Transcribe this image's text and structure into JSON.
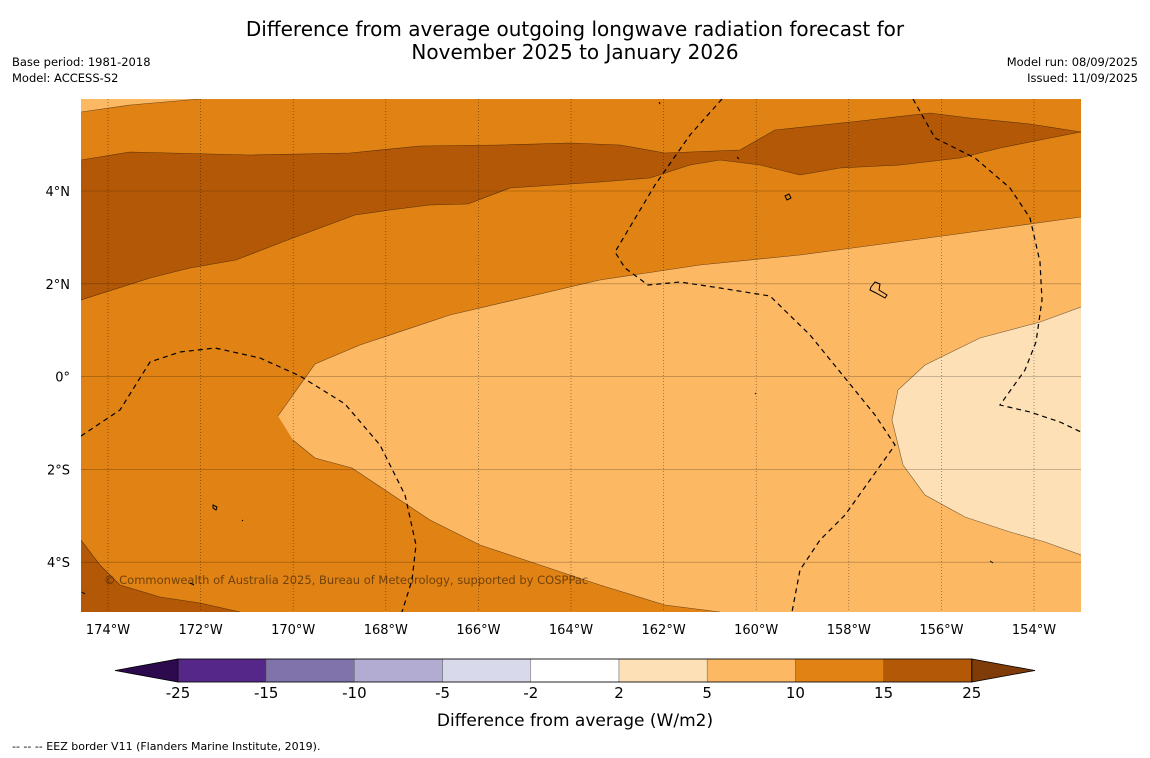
{
  "title_line1": "Difference from average outgoing longwave radiation forecast for",
  "title_line2": "November 2025 to January 2026",
  "base_period": "Base period: 1981-2018",
  "model": "Model: ACCESS-S2",
  "model_run": "Model run: 08/09/2025",
  "issued": "Issued: 11/09/2025",
  "copyright": "© Commonwealth of Australia 2025, Bureau of Meteorology, supported by COSPPac",
  "longitude_labels": [
    "174°W",
    "172°W",
    "170°W",
    "168°W",
    "166°W",
    "164°W",
    "162°W",
    "160°W",
    "158°W",
    "156°W",
    "154°W"
  ],
  "latitude_labels": [
    "4°N",
    "2°N",
    "0°",
    "2°S",
    "4°S"
  ],
  "colorbar": {
    "label": "Difference from average (W/m2)",
    "ticks": [
      "-25",
      "-15",
      "-10",
      "-5",
      "-2",
      "2",
      "5",
      "10",
      "15",
      "25"
    ],
    "colors": [
      "#2d0a4e",
      "#542788",
      "#8073ac",
      "#b2abd2",
      "#d8daeb",
      "#ffffff",
      "#fee0b6",
      "#fdb863",
      "#e08214",
      "#b35806",
      "#7f3b08"
    ]
  },
  "map_fill_colors": {
    "band_15_25": "#b35806",
    "band_10_15": "#e08214",
    "band_5_10": "#fdb863",
    "band_2_5": "#fee0b6"
  },
  "footnote": "--  --  -- EEZ border V11 (Flanders Marine Institute, 2019)."
}
